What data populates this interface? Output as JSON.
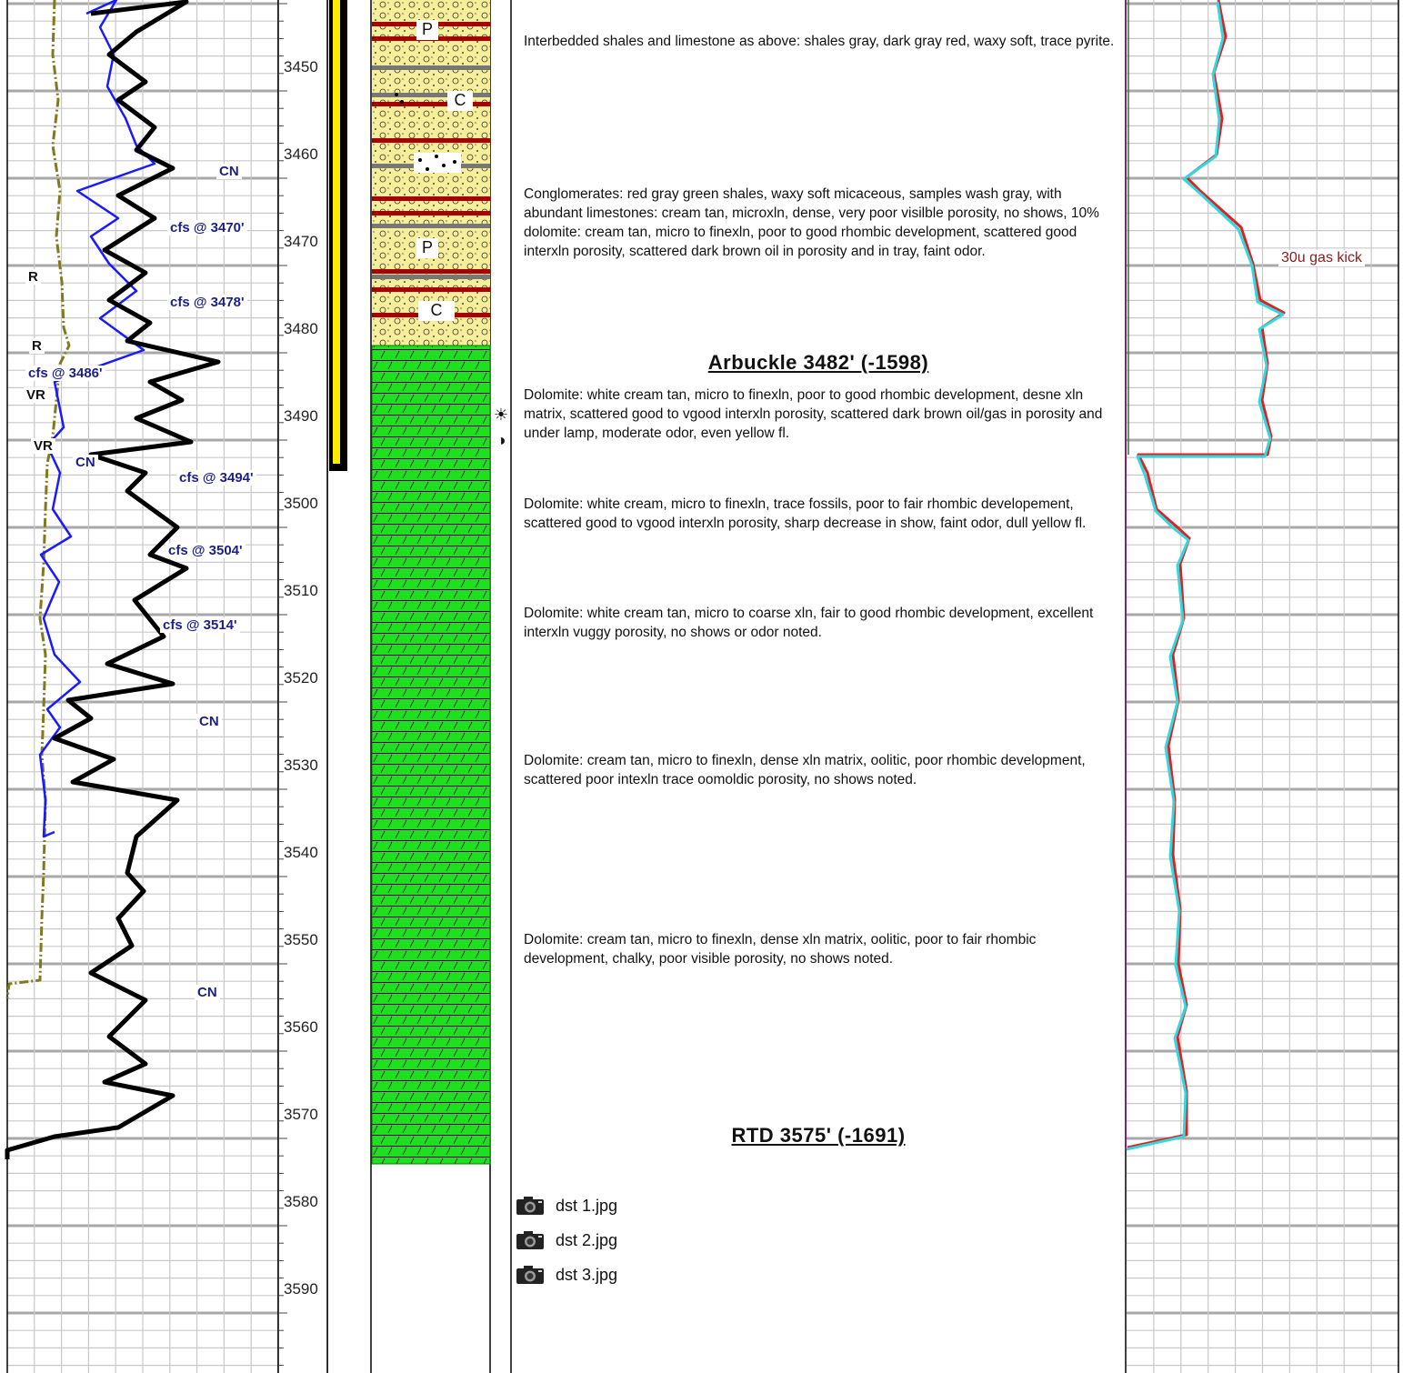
{
  "depth_track": {
    "labels": [
      "3450",
      "3460",
      "3470",
      "3480",
      "3490",
      "3500",
      "3510",
      "3520",
      "3530",
      "3540",
      "3550",
      "3560",
      "3570",
      "3580",
      "3590"
    ]
  },
  "curve_labels": [
    {
      "id": "cn1",
      "text": "CN",
      "color": "navy"
    },
    {
      "id": "cfs3470",
      "text": "cfs @ 3470'",
      "color": "navy"
    },
    {
      "id": "r1",
      "text": "R",
      "color": "black"
    },
    {
      "id": "cfs3478",
      "text": "cfs @ 3478'",
      "color": "navy"
    },
    {
      "id": "r2",
      "text": "R",
      "color": "black"
    },
    {
      "id": "cfs3486",
      "text": "cfs @ 3486'",
      "color": "navy"
    },
    {
      "id": "vr1",
      "text": "VR",
      "color": "black"
    },
    {
      "id": "vr2",
      "text": "VR",
      "color": "black"
    },
    {
      "id": "cn2",
      "text": "CN",
      "color": "navy"
    },
    {
      "id": "cfs3494",
      "text": "cfs @ 3494'",
      "color": "navy"
    },
    {
      "id": "cfs3504",
      "text": "cfs @ 3504'",
      "color": "navy"
    },
    {
      "id": "cfs3514",
      "text": "cfs @ 3514'",
      "color": "navy"
    },
    {
      "id": "cn3",
      "text": "CN",
      "color": "navy"
    },
    {
      "id": "cn4",
      "text": "CN",
      "color": "navy"
    }
  ],
  "lithology_symbols": {
    "p1": "P",
    "c1": "C",
    "p2": "P",
    "c2": "C"
  },
  "descriptions": [
    "Interbedded shales and limestone as above: shales gray, dark gray red, waxy soft, trace pyrite.",
    "Conglomerates: red gray green shales, waxy soft micaceous, samples wash gray, with abundant limestones: cream tan, microxln, dense, very poor visilble porosity, no shows, 10% dolomite: cream tan, micro to finexln, poor to good rhombic development, scattered good interxln porosity, scattered dark brown oil in porosity and in tray, faint odor.",
    "Dolomite: white cream tan, micro to finexln, poor to good rhombic development, desne xln matrix, scattered good to vgood interxln porosity, scattered dark brown oil/gas in porosity and under lamp, moderate odor, even yellow fl.",
    "Dolomite: white cream, micro to finexln, trace fossils, poor to fair rhombic developement, scattered good to vgood interxln porosity, sharp decrease in show, faint odor, dull yellow fl.",
    "Dolomite: white cream tan, micro to coarse xln, fair to good rhombic development, excellent interxln vuggy porosity, no shows or odor noted.",
    "Dolomite: cream tan, micro to finexln, dense xln matrix, oolitic, poor rhombic development, scattered poor intexln trace oomoldic porosity, no shows noted.",
    "Dolomite: cream tan, micro to finexln, dense xln matrix, oolitic, poor to fair rhombic development, chalky, poor visible porosity, no shows noted."
  ],
  "markers": {
    "arbuckle": "Arbuckle  3482'  (-1598)",
    "rtd": "RTD  3575'  (-1691)"
  },
  "show_symbols": {
    "sun": "☀",
    "half": "◑"
  },
  "gas_annotation": "30u gas kick",
  "photos": [
    "dst 1.jpg",
    "dst 2.jpg",
    "dst 3.jpg"
  ],
  "colors": {
    "gamma": "#000000",
    "sp": "#1a1aff",
    "resistivity": "#7f7a1e",
    "gas_total": "#e02020",
    "gas_chrom": "#30d8e0",
    "dolomite": "#1fe01f",
    "conglomerate": "#f7ee9a",
    "shale_red": "#a80000",
    "penetration": "#ffee00"
  }
}
